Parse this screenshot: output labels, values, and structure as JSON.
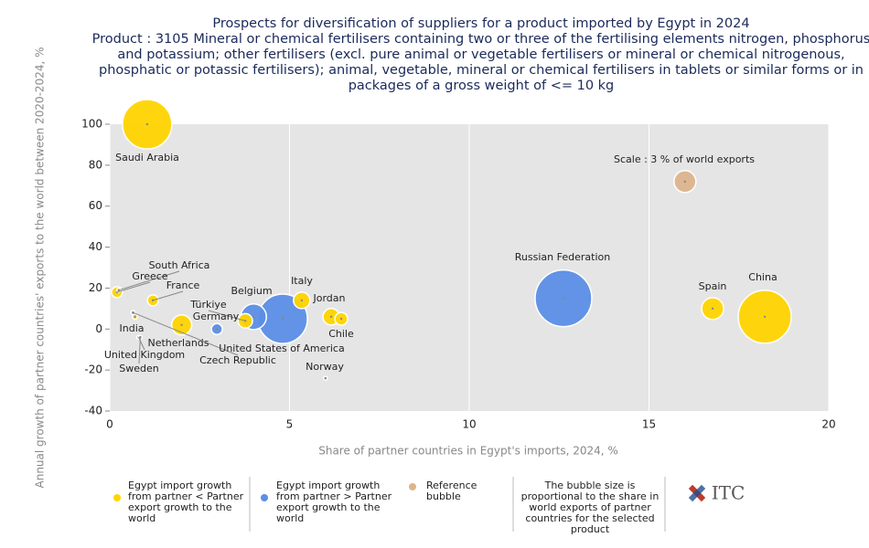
{
  "chart_data": {
    "type": "bubble",
    "title": "Prospects for diversification of suppliers for a product imported by Egypt in 2024",
    "subtitle": "Product : 3105 Mineral or chemical fertilisers containing two or three of the fertilising elements nitrogen, phosphorus and potassium; other fertilisers (excl. pure animal or vegetable fertilisers or mineral or chemical nitrogenous, phosphatic or potassic fertilisers); animal, vegetable, mineral or chemical fertilisers in tablets or similar forms or in packages of a gross weight of <= 10 kg",
    "x_label": "Share of partner countries in Egypt's imports, 2024, %",
    "y_label": "Annual growth of partner countries' exports to the world between 2020-2024, %",
    "xlim": [
      0,
      20
    ],
    "xticks": [
      0,
      5,
      10,
      15,
      20
    ],
    "ylim": [
      -40,
      100
    ],
    "yticks": [
      -40,
      -20,
      0,
      20,
      40,
      60,
      80,
      100
    ],
    "grid": true,
    "series": [
      {
        "name": "Egypt import growth from partner < Partner export growth to the world",
        "color": "#ffd400",
        "labels": [
          "Saudi Arabia",
          "South Africa",
          "Greece",
          "France",
          "India",
          "Netherlands",
          "Türkiye",
          "Italy",
          "Jordan",
          "Chile",
          "Spain",
          "China",
          "United Kingdom"
        ],
        "x": [
          1.04,
          0.25,
          0.2,
          1.2,
          0.7,
          2.0,
          3.77,
          5.34,
          6.16,
          6.44,
          16.77,
          18.22,
          0.8
        ],
        "values": [
          100,
          19,
          18,
          14,
          6,
          2,
          4,
          14,
          6,
          5,
          10,
          6,
          -4
        ],
        "sizes": [
          15.2,
          0.1,
          0.75,
          0.75,
          0.15,
          2.5,
          1.3,
          1.7,
          1.7,
          1.0,
          3.0,
          17.5,
          0.05
        ]
      },
      {
        "name": "Egypt import growth from partner > Partner export growth to the world",
        "color": "#5b8ee6",
        "labels": [
          "Czech Republic",
          "Sweden",
          "Germany",
          "Belgium",
          "United States of America",
          "Norway",
          "Russian Federation"
        ],
        "x": [
          0.65,
          0.85,
          2.98,
          4.0,
          4.81,
          6.0,
          12.62
        ],
        "values": [
          8,
          -4,
          0,
          6,
          5,
          -24,
          15
        ],
        "sizes": [
          0.1,
          0.05,
          0.75,
          4.1,
          15.2,
          0.05,
          20
        ]
      },
      {
        "name": "Reference bubble",
        "color": "#dcb48c",
        "labels": [
          "Scale : 3 % of world exports"
        ],
        "x": [
          16.0
        ],
        "values": [
          72
        ],
        "sizes": [
          3
        ]
      }
    ],
    "note": "The bubble size is proportional to the share in world exports of partner countries for the selected product",
    "logo": "ITC"
  }
}
